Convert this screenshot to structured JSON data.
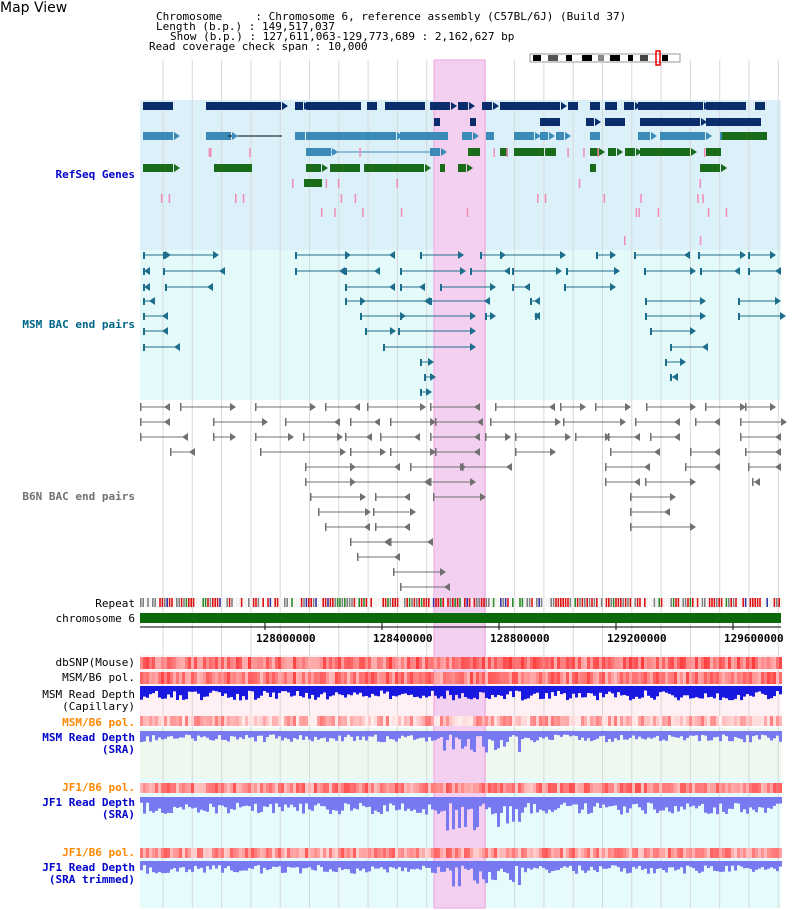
{
  "page": {
    "title": "Map View"
  },
  "header": {
    "chromosome_label": "Chromosome",
    "chromosome_value": "Chromosome 6, reference assembly (C57BL/6J) (Build 37)",
    "length_label": "Length (b.p.)",
    "length_value": "149,517,037",
    "show_label": "Show (b.p.)",
    "show_value": "127,611,063-129,773,689 : 2,162,627 bp",
    "read_coverage_label": "Read coverage check span",
    "read_coverage_value": "10,000"
  },
  "tracks": {
    "refseq": "RefSeq Genes",
    "msm_bac": "MSM BAC end pairs",
    "b6n_bac": "B6N BAC end pairs",
    "repeat": "Repeat",
    "chromosome": "chromosome 6",
    "dbsnp": "dbSNP(Mouse)",
    "msm_b6_pol_1": "MSM/B6 pol.",
    "msm_read_depth_cap_1": "MSM Read Depth",
    "msm_read_depth_cap_2": "(Capillary)",
    "msm_b6_pol_2": "MSM/B6 pol.",
    "msm_read_depth_sra_1": "MSM Read Depth",
    "msm_read_depth_sra_2": "(SRA)",
    "jf1_b6_pol_1": "JF1/B6 pol.",
    "jf1_read_depth_sra_1": "JF1 Read Depth",
    "jf1_read_depth_sra_2": "(SRA)",
    "jf1_b6_pol_2": "JF1/B6 pol.",
    "jf1_read_depth_trim_1": "JF1 Read Depth",
    "jf1_read_depth_trim_2": "(SRA trimmed)"
  },
  "axis_ticks": [
    "128000000",
    "128400000",
    "128800000",
    "129200000",
    "129600000"
  ],
  "colors": {
    "refseq_bg": "#dcf0fa",
    "msm_bg": "#e4fafa",
    "highlight": "#f4d0f0",
    "navy": "#0b2d6b",
    "steel": "#3b8ab8",
    "green": "#1a6b1a",
    "pink": "#f08cb4",
    "msm_line": "#1d6e8c",
    "b6n_line": "#707070",
    "chrom": "#0a6a0a",
    "depth_blue": "#1818e0",
    "depth_light": "#7878f0",
    "label_blue": "#0000cc",
    "label_orange": "#ff8800",
    "label_teal": "#006688"
  }
}
